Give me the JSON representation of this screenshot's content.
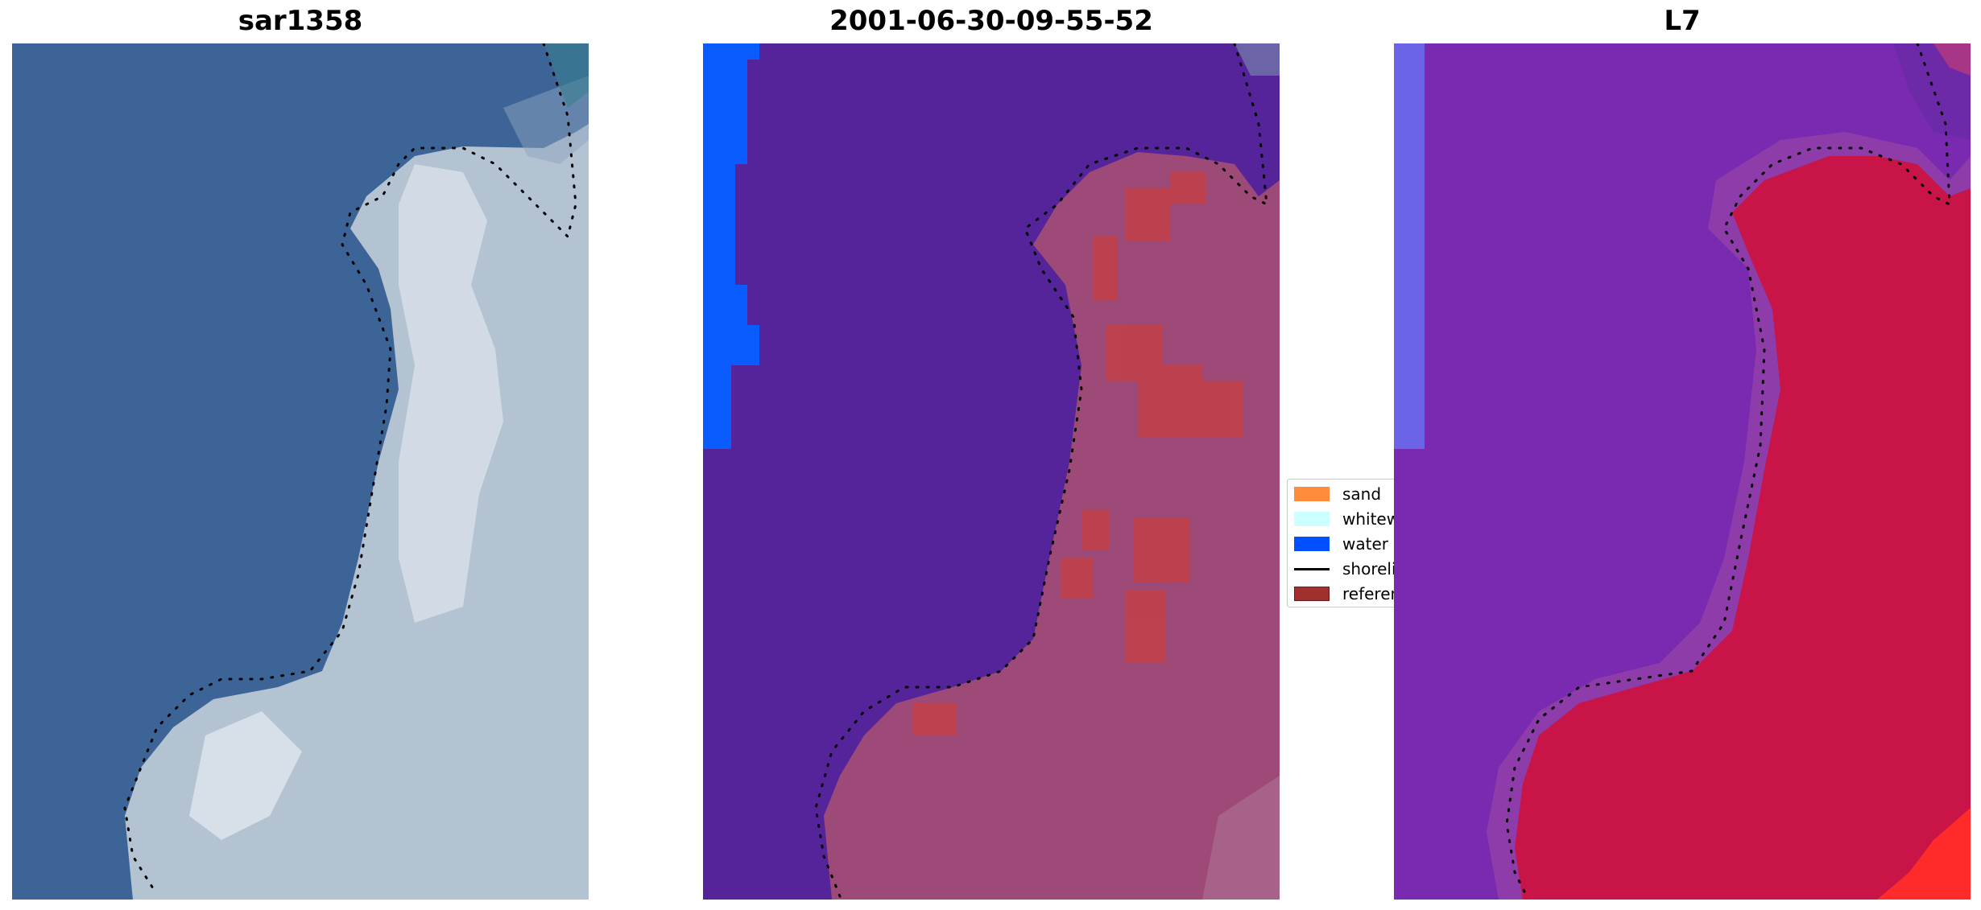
{
  "panels": [
    {
      "title": "sar1358"
    },
    {
      "title": "2001-06-30-09-55-52"
    },
    {
      "title": "L7"
    }
  ],
  "legend": {
    "items": [
      {
        "label": "sand",
        "color": "#ff8c3a",
        "kind": "patch"
      },
      {
        "label": "whitewater",
        "color": "#ccffff",
        "kind": "patch"
      },
      {
        "label": "water",
        "color": "#0050ff",
        "kind": "patch"
      },
      {
        "label": "shoreline",
        "color": "#000000",
        "kind": "line"
      },
      {
        "label": "reference",
        "color": "#a0302d",
        "kind": "patch"
      }
    ]
  },
  "colors": {
    "sea_rgb": "#3c6496",
    "land_rgb": "#b4c3d2",
    "cls_water_overlay": "#55239a",
    "cls_land_overlay": "#9e4a78",
    "cls_reference": "#c0404a",
    "cls_blue_strip": "#0a5cff",
    "idx_water": "#7a2ab0",
    "idx_land": "#c81446",
    "idx_bright_red": "#ff2a2a",
    "idx_left_blue": "#6a6ef0"
  }
}
